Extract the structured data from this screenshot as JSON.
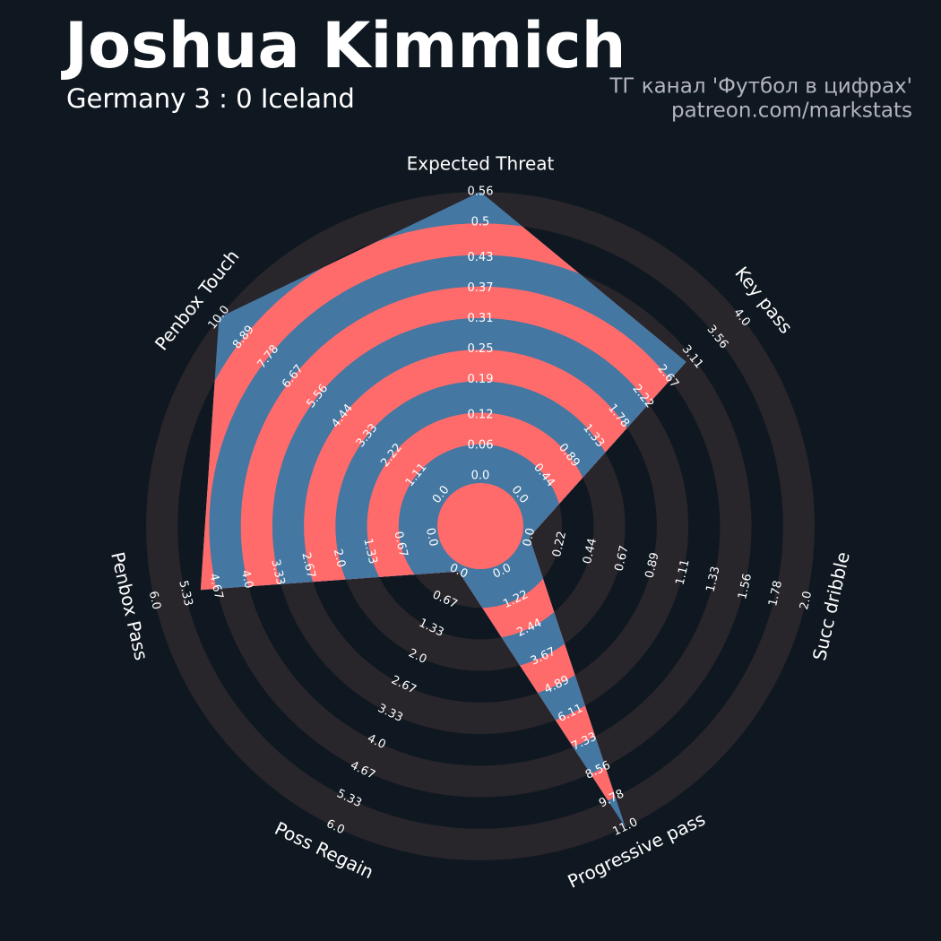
{
  "chart_data": {
    "type": "radar",
    "title": "Joshua Kimmich",
    "subtitle": "Germany 3 : 0 Iceland",
    "credits": [
      "ТГ канал 'Футбол в цифрах'",
      "patreon.com/markstats"
    ],
    "axes": [
      {
        "name": "Expected Threat",
        "ticks": [
          {
            "value": 0,
            "label": "0.0"
          },
          0.06,
          0.12,
          0.19,
          0.25,
          0.31,
          0.37,
          0.43,
          0.5,
          0.56
        ]
      },
      {
        "name": "Key pass",
        "ticks": [
          {
            "value": 0,
            "label": "0.0"
          },
          0.44,
          0.89,
          1.33,
          1.78,
          2.22,
          2.67,
          3.11,
          3.56,
          {
            "value": 4,
            "label": "4.0"
          }
        ]
      },
      {
        "name": "Succ dribble",
        "ticks": [
          {
            "value": 0,
            "label": "0.0"
          },
          0.22,
          0.44,
          0.67,
          0.89,
          1.11,
          1.33,
          1.56,
          1.78,
          {
            "value": 2,
            "label": "2.0"
          }
        ]
      },
      {
        "name": "Progressive pass",
        "ticks": [
          {
            "value": 0,
            "label": "0.0"
          },
          1.22,
          2.44,
          3.67,
          4.89,
          6.11,
          7.33,
          8.56,
          9.78,
          {
            "value": 11,
            "label": "11.0"
          }
        ]
      },
      {
        "name": "Poss Regain",
        "ticks": [
          {
            "value": 0,
            "label": "0.0"
          },
          0.67,
          1.33,
          {
            "value": 2,
            "label": "2.0"
          },
          2.67,
          3.33,
          {
            "value": 4,
            "label": "4.0"
          },
          4.67,
          5.33,
          {
            "value": 6,
            "label": "6.0"
          }
        ]
      },
      {
        "name": "Penbox Pass",
        "ticks": [
          {
            "value": 0,
            "label": "0.0"
          },
          0.67,
          1.33,
          {
            "value": 2,
            "label": "2.0"
          },
          2.67,
          3.33,
          {
            "value": 4,
            "label": "4.0"
          },
          4.67,
          5.33,
          {
            "value": 6,
            "label": "6.0"
          }
        ]
      },
      {
        "name": "Penbox Touch",
        "ticks": [
          {
            "value": 0,
            "label": "0.0"
          },
          1.11,
          2.22,
          3.33,
          4.44,
          5.56,
          6.67,
          7.78,
          8.89,
          {
            "value": 10,
            "label": "10.0"
          }
        ]
      }
    ],
    "values": [
      0.56,
      3.0,
      0,
      11.0,
      0,
      5.0,
      10.0
    ],
    "colors": {
      "background": "#0f1820",
      "ring": "#28252b",
      "polygon": "#4477a2",
      "alternate": "#ff6b6b"
    }
  }
}
